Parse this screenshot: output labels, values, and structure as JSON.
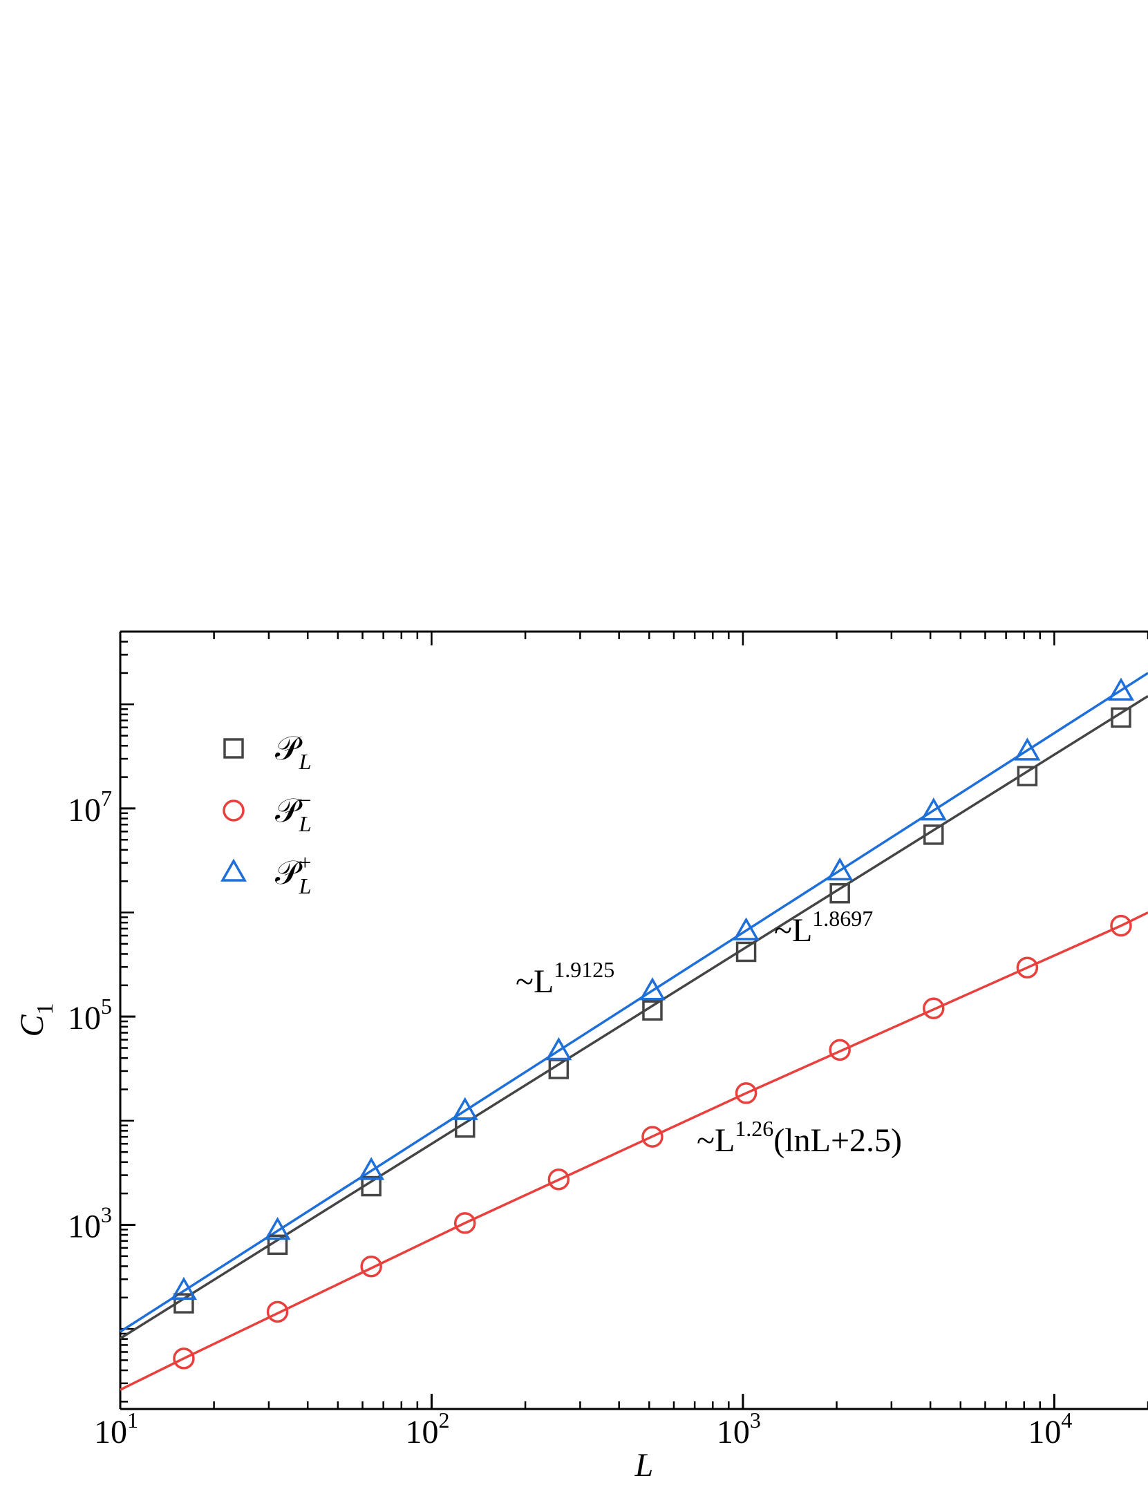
{
  "chart_data": {
    "type": "scatter",
    "xlabel": "L",
    "ylabel": {
      "text": "C",
      "sub": "1"
    },
    "log_x": true,
    "log_y": true,
    "xlim": [
      10,
      20000
    ],
    "ylim": [
      17,
      500000000
    ],
    "xticks": [
      {
        "value": 10,
        "label": "10",
        "sup": "1"
      },
      {
        "value": 100,
        "label": "10",
        "sup": "2"
      },
      {
        "value": 1000,
        "label": "10",
        "sup": "3"
      },
      {
        "value": 10000,
        "label": "10",
        "sup": "4"
      }
    ],
    "yticks": [
      {
        "value": 1000,
        "label": "10",
        "sup": "3"
      },
      {
        "value": 100000,
        "label": "10",
        "sup": "5"
      },
      {
        "value": 10000000,
        "label": "10",
        "sup": "7"
      }
    ],
    "x": [
      16,
      32,
      64,
      128,
      256,
      512,
      1024,
      2048,
      4096,
      8192,
      16384
    ],
    "series": [
      {
        "name": "𝒫",
        "sub": "L",
        "marker": "square",
        "color": "#454545",
        "values": [
          176,
          643,
          2350,
          8590,
          31400,
          114700,
          419000,
          1531000,
          5596000,
          20450000,
          74700000
        ]
      },
      {
        "name": "𝒫",
        "sub": "L",
        "sup": "−",
        "marker": "circle",
        "color": "#e8403c",
        "values": [
          52,
          146,
          398,
          1040,
          2730,
          7000,
          18400,
          47900,
          120000,
          296000,
          747000
        ]
      },
      {
        "name": "𝒫",
        "sub": "L",
        "sup": "+",
        "marker": "triangle",
        "color": "#1f6fd8",
        "values": [
          231,
          870,
          3274,
          12320,
          46380,
          174600,
          657000,
          2473000,
          9310000,
          35040000,
          131900000
        ]
      }
    ],
    "fits": [
      {
        "color": "#454545",
        "x": [
          10,
          20000
        ],
        "values": [
          81,
          120000000
        ]
      },
      {
        "color": "#e8403c",
        "x": [
          10,
          16,
          128,
          1024,
          16384,
          20000
        ],
        "values": [
          26,
          52,
          1040,
          18400,
          747000,
          1000000
        ]
      },
      {
        "color": "#1f6fd8",
        "x": [
          10,
          20000
        ],
        "values": [
          94,
          200000000
        ]
      }
    ],
    "annotations": [
      {
        "text": "~L",
        "sup": "1.9125"
      },
      {
        "text": "~L",
        "sup": "1.8697"
      },
      {
        "text": "~L",
        "sup": "1.26",
        "after": "(lnL+2.5)"
      }
    ]
  }
}
